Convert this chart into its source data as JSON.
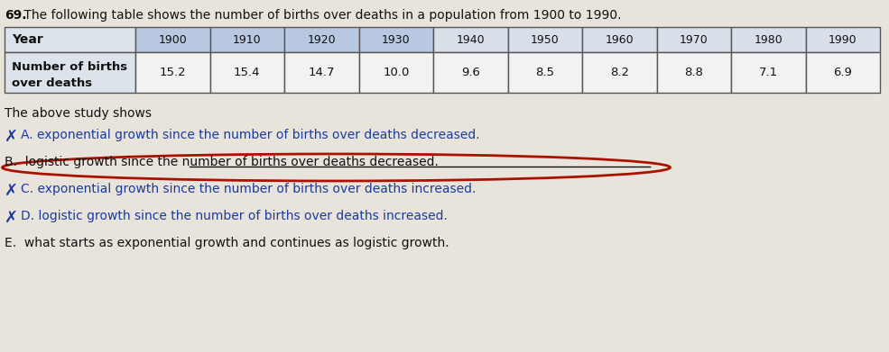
{
  "question_number": "69.",
  "question_text": " The following table shows the number of births over deaths in a population from 1900 to 1990.",
  "table_header_row1": [
    "Year",
    "1900",
    "1910",
    "1920",
    "1930",
    "1940",
    "1950",
    "1960",
    "1970",
    "1980",
    "1990"
  ],
  "table_row2_label_line1": "Number of births",
  "table_row2_label_line2": "over deaths",
  "table_values": [
    "15.2",
    "15.4",
    "14.7",
    "10.0",
    "9.6",
    "8.5",
    "8.2",
    "8.8",
    "7.1",
    "6.9"
  ],
  "above_text": "The above study shows",
  "choices": [
    {
      "letter": "A.",
      "text": "exponential growth since the number of births over deaths decreased.",
      "style": "x_strike",
      "color": "#1a3a9e"
    },
    {
      "letter": "B.",
      "text": "logistic growth since the number of births over deaths decreased.",
      "style": "circle_strike",
      "color": "#111111"
    },
    {
      "letter": "C.",
      "text": "exponential growth since the number of births over deaths increased.",
      "style": "x_strike",
      "color": "#1a3a9e"
    },
    {
      "letter": "D.",
      "text": "logistic growth since the number of births over deaths increased.",
      "style": "x_strike",
      "color": "#1a3a9e"
    },
    {
      "letter": "E.",
      "text": "what starts as exponential growth and continues as logistic growth.",
      "style": "normal",
      "color": "#111111"
    }
  ],
  "bg_color": "#e8e4dc",
  "table_border_color": "#555555",
  "year_header_bg": "#b8c8e0",
  "label_bg": "#e0e4ec",
  "data_bg": "#f0f0f0",
  "circle_color": "#aa1100"
}
